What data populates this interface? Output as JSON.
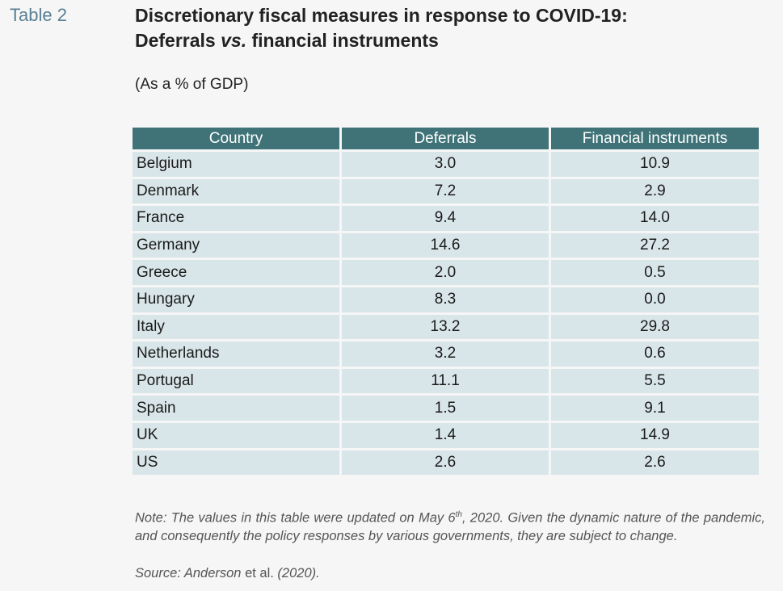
{
  "table_label": "Table 2",
  "title": {
    "line1": "Discretionary fiscal measures in response to COVID-19:",
    "line2_a": "Deferrals ",
    "line2_vs": "vs.",
    "line2_b": " financial instruments"
  },
  "subtitle": "(As a % of GDP)",
  "table": {
    "headers": [
      "Country",
      "Deferrals",
      "Financial instruments"
    ],
    "rows": [
      [
        "Belgium",
        "3.0",
        "10.9"
      ],
      [
        "Denmark",
        "7.2",
        "2.9"
      ],
      [
        "France",
        "9.4",
        "14.0"
      ],
      [
        "Germany",
        "14.6",
        "27.2"
      ],
      [
        "Greece",
        "2.0",
        "0.5"
      ],
      [
        "Hungary",
        "8.3",
        "0.0"
      ],
      [
        "Italy",
        "13.2",
        "29.8"
      ],
      [
        "Netherlands",
        "3.2",
        "0.6"
      ],
      [
        "Portugal",
        "11.1",
        "5.5"
      ],
      [
        "Spain",
        "1.5",
        "9.1"
      ],
      [
        "UK",
        "1.4",
        "14.9"
      ],
      [
        "US",
        "2.6",
        "2.6"
      ]
    ]
  },
  "note": {
    "prefix": "Note: The values in this table were updated on May 6",
    "superscript": "th",
    "suffix": ", 2020. Given the dynamic nature of the pandemic, and consequently the policy responses by various governments, they are subject to change."
  },
  "source": {
    "label": "Source: Anderson ",
    "etal": "et al.",
    "year": " (2020)."
  },
  "colors": {
    "header_bg": "#3f7378",
    "cell_bg": "#d9e6e9",
    "label": "#5a7f95"
  }
}
